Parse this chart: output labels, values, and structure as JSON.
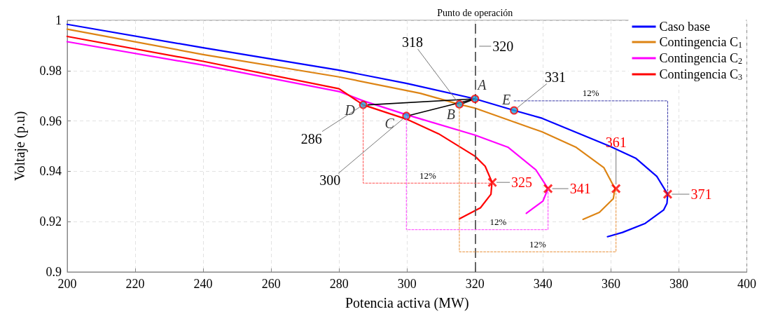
{
  "chart_data": {
    "type": "line",
    "xlabel": "Potencia activa (MW)",
    "ylabel": "Voltaje (p.u)",
    "xlim": [
      200,
      400
    ],
    "xticks": [
      200,
      220,
      240,
      260,
      280,
      300,
      320,
      340,
      360,
      380,
      400
    ],
    "ylim": [
      0.9,
      1
    ],
    "yticks": [
      0.9,
      0.92,
      0.94,
      0.96,
      0.98,
      1
    ],
    "grid": true,
    "legend": "top right",
    "marker": "none",
    "line_style": "solid",
    "series": [
      {
        "name": "Caso base",
        "color": "#0000ff",
        "x": [
          200,
          240,
          280,
          300,
          320,
          331.5,
          339.7,
          359.6,
          367.4,
          373.5,
          376.7,
          376.5,
          375.5,
          370.1,
          363.4,
          359.0
        ],
        "values": [
          0.9984,
          0.9891,
          0.9802,
          0.9749,
          0.9688,
          0.9642,
          0.9611,
          0.95,
          0.9451,
          0.938,
          0.9309,
          0.9273,
          0.9246,
          0.9193,
          0.9157,
          0.914
        ]
      },
      {
        "name": "Contingencia C$_{1}$",
        "color": "#dd8414",
        "x": [
          200,
          240,
          280,
          303.9,
          315.4,
          320,
          339.7,
          349.8,
          357.9,
          361.2,
          360.7,
          356.6,
          351.8
        ],
        "values": [
          0.9965,
          0.9864,
          0.9775,
          0.971,
          0.9666,
          0.9651,
          0.9557,
          0.9495,
          0.9415,
          0.9331,
          0.9291,
          0.9237,
          0.9209
        ]
      },
      {
        "name": "Contingencia C$_{2}$",
        "color": "#ff00ff",
        "x": [
          200,
          240,
          280,
          287.1,
          299.8,
          320,
          329.8,
          337.9,
          341.5,
          340,
          335.1
        ],
        "values": [
          0.9915,
          0.9822,
          0.9717,
          0.968,
          0.9625,
          0.9544,
          0.9495,
          0.9406,
          0.9331,
          0.9282,
          0.9233
        ]
      },
      {
        "name": "Contingencia C$_{3}$",
        "color": "#ff0000",
        "x": [
          200,
          240,
          280,
          287.1,
          299.9,
          309.3,
          320,
          323,
          325,
          324.7,
          321.6,
          315.4
        ],
        "values": [
          0.9936,
          0.9837,
          0.9728,
          0.9664,
          0.9607,
          0.9549,
          0.946,
          0.942,
          0.9357,
          0.9309,
          0.9255,
          0.9211
        ]
      },
      {
        "type": "line",
        "color": "#ff5050",
        "line_style": "dashed",
        "x": [
          287.1,
          287.1,
          325.1
        ],
        "values": [
          0.9664,
          0.9353,
          0.9353
        ]
      },
      {
        "type": "line",
        "color": "#ff40ff",
        "line_style": "dashed",
        "x": [
          299.8,
          299.8,
          341.5,
          341.5
        ],
        "values": [
          0.962,
          0.9168,
          0.9168,
          0.9331
        ]
      },
      {
        "type": "line",
        "color": "#e8913a",
        "line_style": "dashed",
        "x": [
          315.4,
          315.4,
          361.5,
          361.5
        ],
        "values": [
          0.9666,
          0.908,
          0.908,
          0.9331
        ]
      },
      {
        "type": "line",
        "color": "#3a3aa8",
        "line_style": "dashed",
        "x": [
          331.5,
          376.7,
          376.7
        ],
        "values": [
          0.968,
          0.968,
          0.9309
        ]
      },
      {
        "type": "line",
        "color": "#000000",
        "x": [
          320,
          316.5
        ],
        "values": [
          0.9688,
          0.967
        ]
      },
      {
        "type": "line",
        "color": "#000000",
        "x": [
          320,
          301
        ],
        "values": [
          0.9688,
          0.9623
        ]
      },
      {
        "type": "line",
        "color": "#000000",
        "x": [
          320,
          288.5
        ],
        "values": [
          0.9688,
          0.9664
        ]
      },
      {
        "type": "scatter",
        "color": "#1fa3dc",
        "marker": "circle",
        "x": [
          320,
          315.4,
          299.8,
          287.1,
          331.5
        ],
        "values": [
          0.9688,
          0.9666,
          0.962,
          0.9664,
          0.9642
        ],
        "value_labels": [
          "A",
          "B",
          "C",
          "D",
          "E"
        ]
      },
      {
        "type": "scatter",
        "color": "#ff0000",
        "marker": "cross",
        "x": [
          325.1,
          341.5,
          361.5,
          376.7
        ],
        "values": [
          0.9356,
          0.9331,
          0.9331,
          0.9309
        ]
      }
    ],
    "ref_lines": [
      {
        "axis": "x",
        "value": 320,
        "label": "Punto de operación",
        "color": "#555555",
        "line_style": "dashed"
      }
    ],
    "annotations": [
      {
        "text": "318",
        "x": 315.4,
        "y": 0.9666
      },
      {
        "text": "320",
        "x": 320,
        "y": 0.9897
      },
      {
        "text": "331",
        "x": 331.5,
        "y": 0.9642
      },
      {
        "text": "286",
        "x": 287.1,
        "y": 0.9664
      },
      {
        "text": "300",
        "x": 299.8,
        "y": 0.962
      },
      {
        "text": "325",
        "x": 325.1,
        "y": 0.9356
      },
      {
        "text": "341",
        "x": 341.5,
        "y": 0.9331
      },
      {
        "text": "361",
        "x": 361.5,
        "y": 0.9331
      },
      {
        "text": "371",
        "x": 376.7,
        "y": 0.9309
      },
      {
        "text": "12%",
        "x": 306.1,
        "y": 0.9353
      },
      {
        "text": "12%",
        "x": 320.65,
        "y": 0.9168
      },
      {
        "text": "12%",
        "x": 338.45,
        "y": 0.908
      },
      {
        "text": "12%",
        "x": 354.1,
        "y": 0.968
      }
    ]
  }
}
